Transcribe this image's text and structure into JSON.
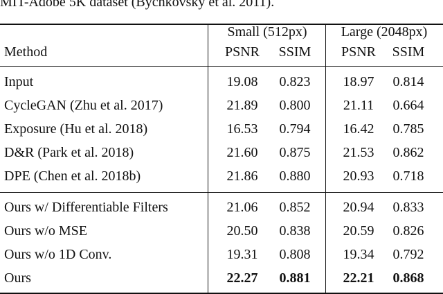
{
  "caption": "MIT-Adobe 5K dataset (Bychkovsky et al. 2011).",
  "header": {
    "groups": [
      "Small (512px)",
      "Large (2048px)"
    ],
    "columns": [
      "Method",
      "PSNR",
      "SSIM",
      "PSNR",
      "SSIM"
    ]
  },
  "table": {
    "sections": [
      [
        [
          "Input",
          "19.08",
          "0.823",
          "18.97",
          "0.814"
        ],
        [
          "CycleGAN (Zhu et al. 2017)",
          "21.89",
          "0.800",
          "21.11",
          "0.664"
        ],
        [
          "Exposure (Hu et al. 2018)",
          "16.53",
          "0.794",
          "16.42",
          "0.785"
        ],
        [
          "D&R (Park et al. 2018)",
          "21.60",
          "0.875",
          "21.53",
          "0.862"
        ],
        [
          "DPE (Chen et al. 2018b)",
          "21.86",
          "0.880",
          "20.93",
          "0.718"
        ]
      ],
      [
        [
          "Ours w/ Differentiable Filters",
          "21.06",
          "0.852",
          "20.94",
          "0.833"
        ],
        [
          "Ours w/o MSE",
          "20.50",
          "0.838",
          "20.59",
          "0.826"
        ],
        [
          "Ours w/o 1D Conv.",
          "19.31",
          "0.808",
          "19.34",
          "0.792"
        ],
        [
          "Ours",
          "22.27",
          "0.881",
          "22.21",
          "0.868"
        ]
      ]
    ]
  }
}
